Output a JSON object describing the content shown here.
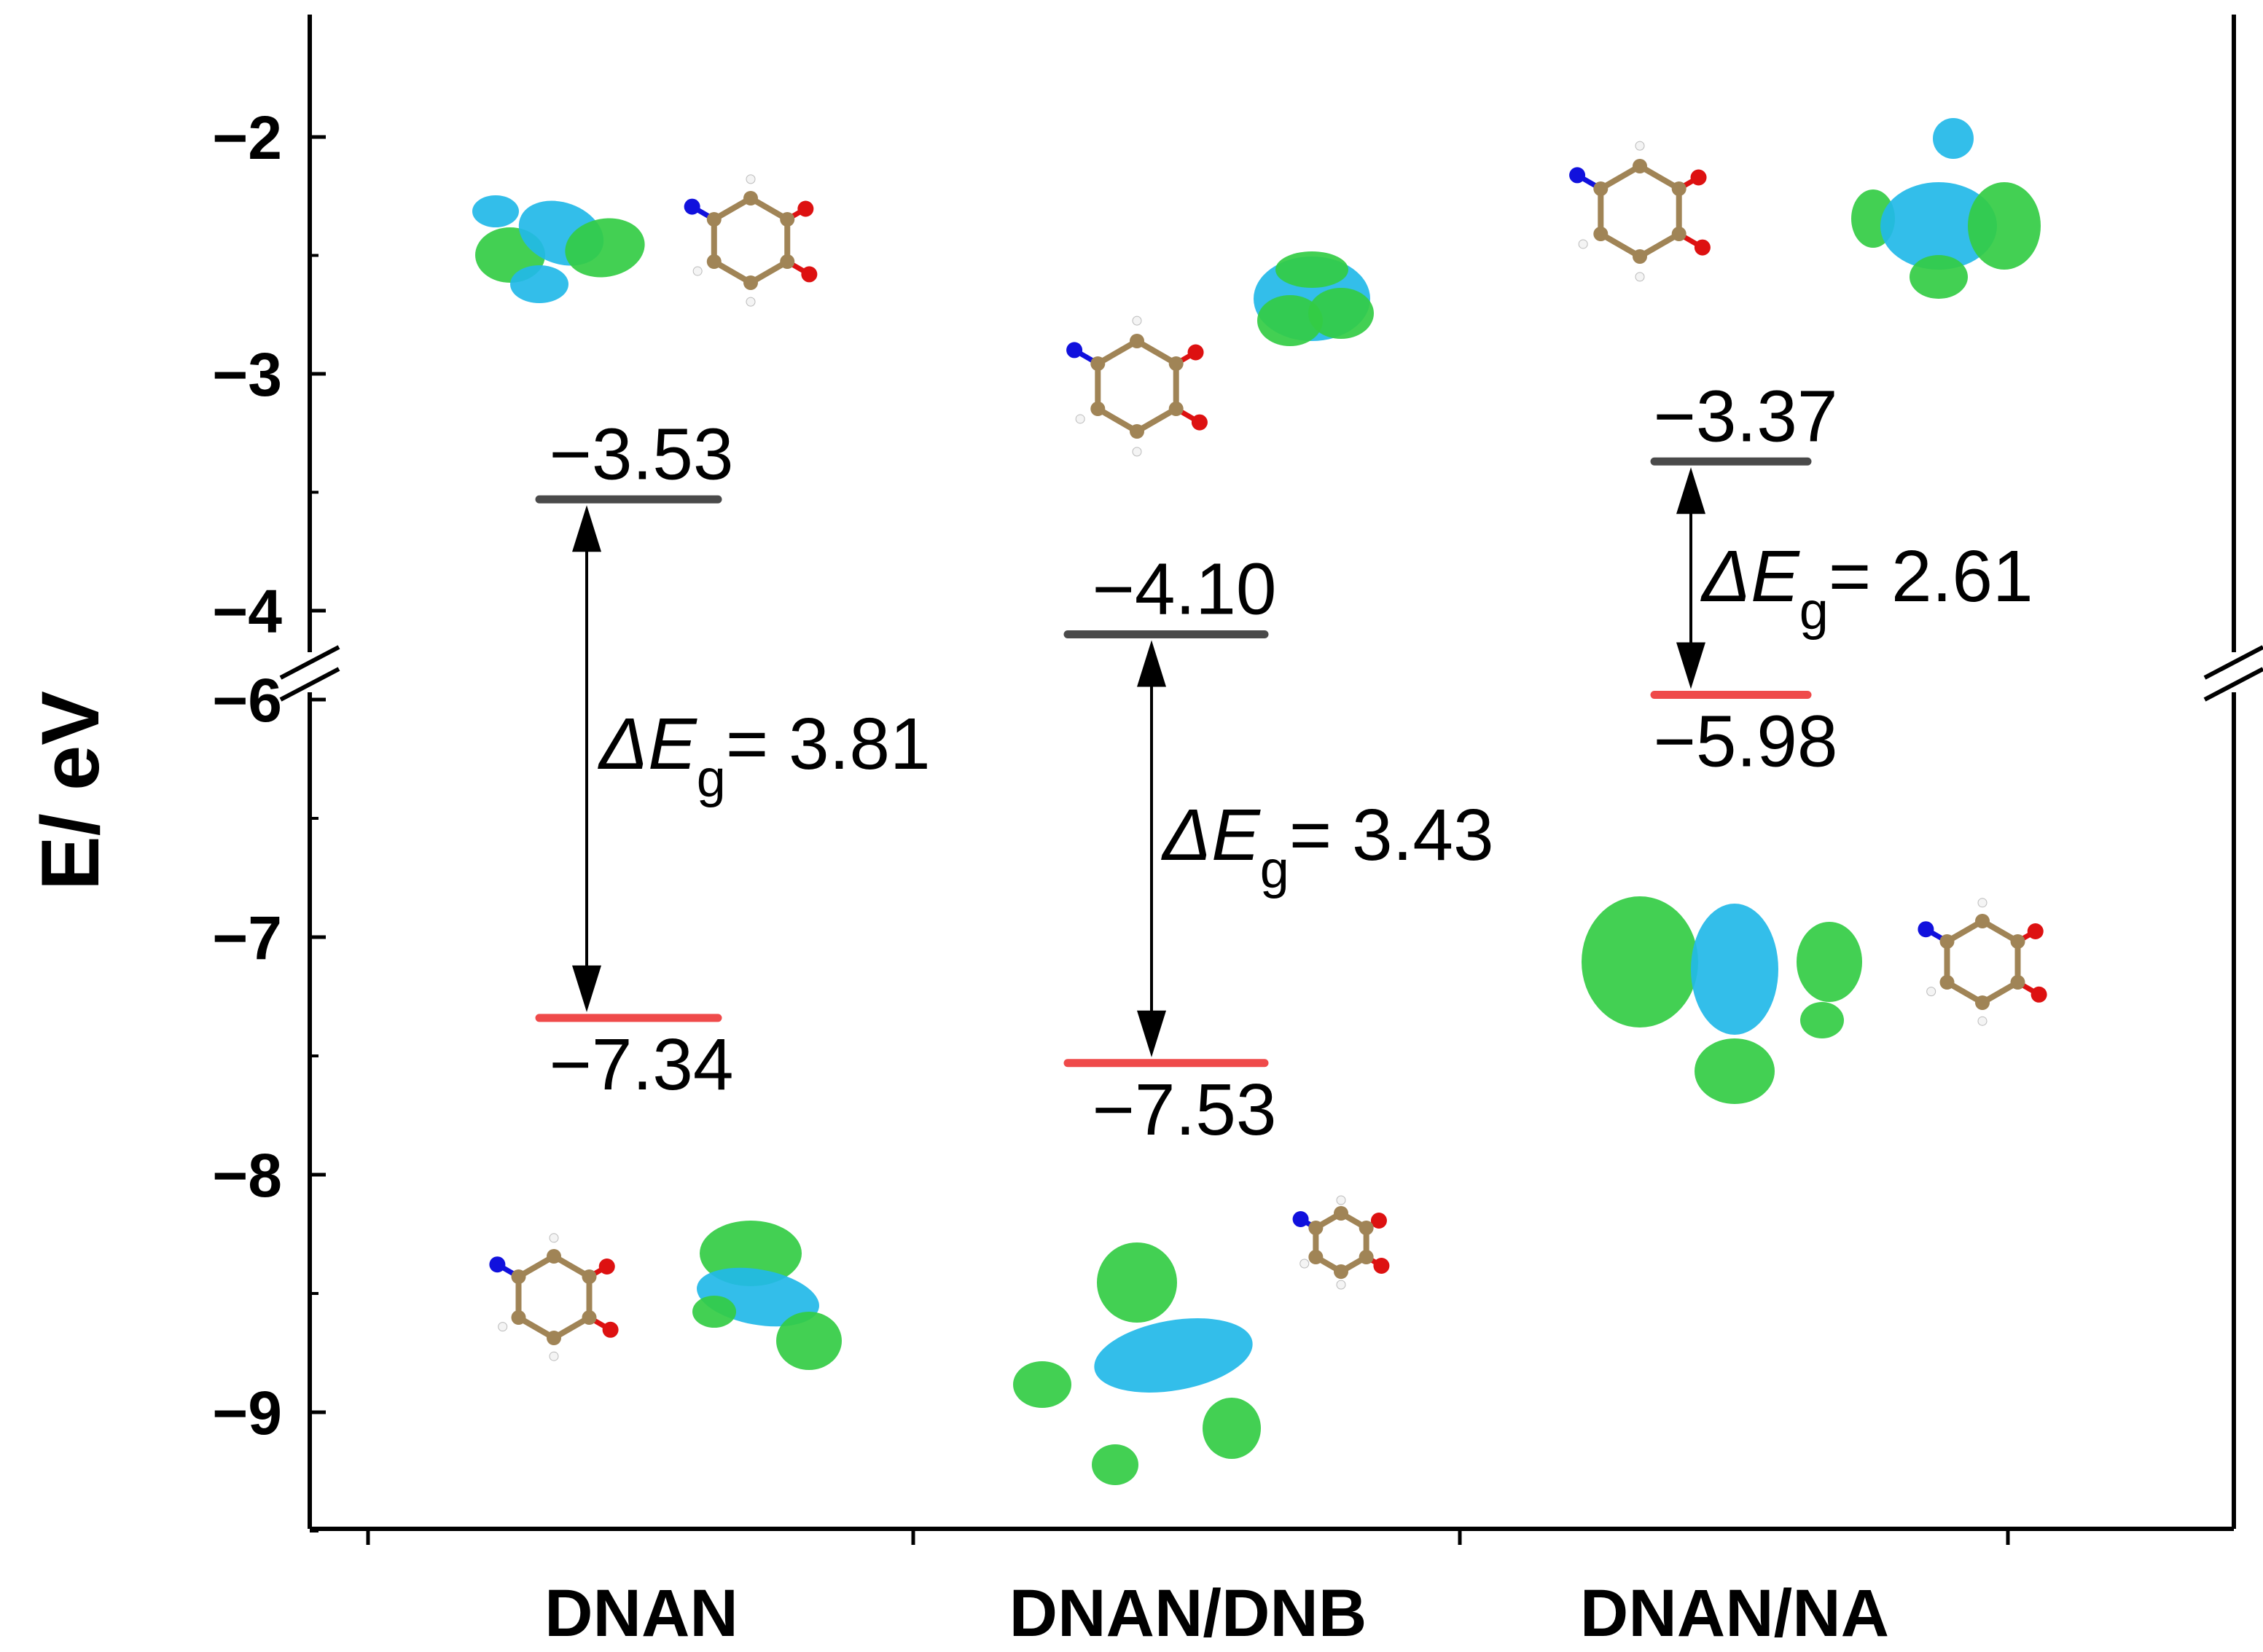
{
  "chart_data": {
    "type": "energy-level diagram (HOMO/LUMO)",
    "ylabel": "E/ eV",
    "axis_break": {
      "between": [
        -4,
        -6
      ]
    },
    "upper_ylim": [
      -1.5,
      -4.3
    ],
    "lower_ylim": [
      -5.95,
      -9.5
    ],
    "upper_ticks": [
      {
        "value": -2,
        "label": "−2"
      },
      {
        "value": -3,
        "label": "−3"
      },
      {
        "value": -4,
        "label": "−4"
      }
    ],
    "lower_ticks": [
      {
        "value": -6,
        "label": "−6"
      },
      {
        "value": -7,
        "label": "−7"
      },
      {
        "value": -8,
        "label": "−8"
      },
      {
        "value": -9,
        "label": "−9"
      }
    ],
    "categories": [
      "DNAN",
      "DNAN/DNB",
      "DNAN/NA"
    ],
    "lumo_color": "#4a4a4a",
    "homo_color": "#ef4a4a",
    "series": [
      {
        "name": "DNAN",
        "lumo": -3.53,
        "homo": -7.34,
        "lumo_label": "−3.53",
        "homo_label": "−7.34",
        "gap_prefix": "ΔE",
        "gap_sub": "g",
        "gap_value": "= 3.81"
      },
      {
        "name": "DNAN/DNB",
        "lumo": -4.1,
        "homo": -7.53,
        "lumo_label": "−4.10",
        "homo_label": "−7.53",
        "gap_prefix": "ΔE",
        "gap_sub": "g",
        "gap_value": "= 3.43"
      },
      {
        "name": "DNAN/NA",
        "lumo": -3.37,
        "homo": -5.98,
        "lumo_label": "−3.37",
        "homo_label": "−5.98",
        "gap_prefix": "ΔE",
        "gap_sub": "g",
        "gap_value": "= 2.61"
      }
    ]
  }
}
